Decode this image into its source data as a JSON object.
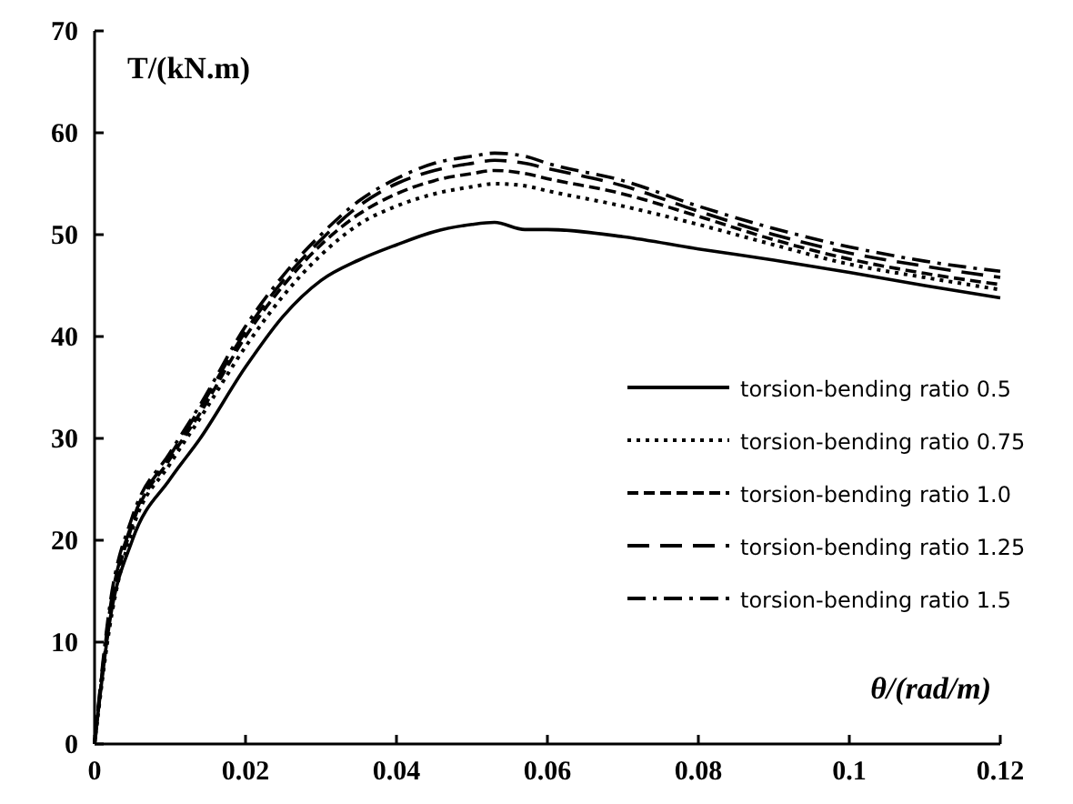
{
  "chart_data": {
    "type": "line",
    "xlabel": "θ/(rad/m)",
    "ylabel": "T/(kN.m)",
    "xlim": [
      0,
      0.12
    ],
    "ylim": [
      0,
      70
    ],
    "xticks": [
      0,
      0.02,
      0.04,
      0.06,
      0.08,
      0.1,
      0.12
    ],
    "yticks": [
      0,
      10,
      20,
      30,
      40,
      50,
      60,
      70
    ],
    "legend": "right",
    "grid": false,
    "x": [
      0,
      0.002,
      0.005,
      0.01,
      0.014,
      0.02,
      0.025,
      0.03,
      0.035,
      0.04,
      0.045,
      0.05,
      0.053,
      0.057,
      0.06,
      0.07,
      0.08,
      0.09,
      0.1,
      0.11,
      0.12
    ],
    "series": [
      {
        "name": "torsion-bending ratio 0.5",
        "color": "#000000",
        "line_style": "solid",
        "values": [
          0,
          12,
          20,
          26,
          30,
          37,
          42,
          45.5,
          47.5,
          49,
          50.3,
          51,
          51.2,
          50.5,
          50.5,
          49.8,
          48.6,
          47.5,
          46.3,
          45,
          43.8
        ]
      },
      {
        "name": "torsion-bending ratio 0.75",
        "color": "#000000",
        "line_style": "dotted",
        "values": [
          0,
          11.5,
          21,
          27.5,
          32,
          39,
          44,
          48,
          51,
          52.8,
          54,
          54.7,
          55,
          54.8,
          54.3,
          52.8,
          51,
          49,
          47.1,
          45.8,
          44.6
        ]
      },
      {
        "name": "torsion-bending ratio 1.0",
        "color": "#000000",
        "line_style": "dashed",
        "values": [
          0,
          12.5,
          21.5,
          28,
          32.5,
          40,
          45,
          49,
          52,
          54,
          55.3,
          56,
          56.3,
          56,
          55.5,
          54,
          51.8,
          49.5,
          47.6,
          46.2,
          45.1
        ]
      },
      {
        "name": "torsion-bending ratio 1.25",
        "color": "#000000",
        "line_style": "longdash",
        "values": [
          0,
          13,
          21.8,
          28.3,
          33,
          40.5,
          45.5,
          49.5,
          52.8,
          55,
          56.3,
          57,
          57.3,
          57,
          56.5,
          54.8,
          52.3,
          50,
          48.2,
          46.9,
          45.8
        ]
      },
      {
        "name": "torsion-bending ratio 1.5",
        "color": "#000000",
        "line_style": "dashdot",
        "values": [
          0,
          13.5,
          22.3,
          28.6,
          33.3,
          41,
          46,
          50,
          53.3,
          55.5,
          57,
          57.7,
          58,
          57.7,
          57,
          55.3,
          52.8,
          50.6,
          48.8,
          47.4,
          46.4
        ]
      }
    ]
  }
}
